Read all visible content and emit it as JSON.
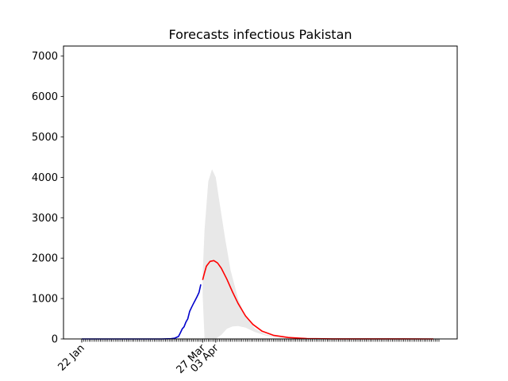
{
  "chart_data": {
    "type": "line",
    "title": "Forecasts infectious Pakistan",
    "xlabel": "",
    "ylabel": "",
    "ylim": [
      0,
      7250
    ],
    "yticks": [
      0,
      1000,
      2000,
      3000,
      4000,
      5000,
      6000,
      7000
    ],
    "x_tick_labels": [
      {
        "label": "22 Jan",
        "date": "2020-01-22"
      },
      {
        "label": "27 Mar",
        "date": "2020-03-27"
      },
      {
        "label": "03 Apr",
        "date": "2020-04-03"
      }
    ],
    "xlim": [
      "2020-01-22",
      "2020-08-01"
    ],
    "series": [
      {
        "role": "observed",
        "color": "#0000cc",
        "points": [
          [
            "2020-01-22",
            0
          ],
          [
            "2020-02-15",
            0
          ],
          [
            "2020-03-05",
            0
          ],
          [
            "2020-03-10",
            5
          ],
          [
            "2020-03-12",
            20
          ],
          [
            "2020-03-14",
            60
          ],
          [
            "2020-03-15",
            150
          ],
          [
            "2020-03-16",
            250
          ],
          [
            "2020-03-17",
            300
          ],
          [
            "2020-03-18",
            420
          ],
          [
            "2020-03-19",
            500
          ],
          [
            "2020-03-20",
            680
          ],
          [
            "2020-03-21",
            780
          ],
          [
            "2020-03-22",
            870
          ],
          [
            "2020-03-23",
            960
          ],
          [
            "2020-03-24",
            1050
          ],
          [
            "2020-03-25",
            1150
          ],
          [
            "2020-03-26",
            1350
          ]
        ]
      },
      {
        "role": "forecast",
        "color": "#ff0000",
        "points": [
          [
            "2020-03-27",
            1460
          ],
          [
            "2020-03-28",
            1640
          ],
          [
            "2020-03-29",
            1800
          ],
          [
            "2020-03-31",
            1920
          ],
          [
            "2020-04-02",
            1940
          ],
          [
            "2020-04-04",
            1880
          ],
          [
            "2020-04-06",
            1750
          ],
          [
            "2020-04-09",
            1480
          ],
          [
            "2020-04-12",
            1170
          ],
          [
            "2020-04-15",
            880
          ],
          [
            "2020-04-19",
            570
          ],
          [
            "2020-04-23",
            360
          ],
          [
            "2020-04-28",
            190
          ],
          [
            "2020-05-04",
            90
          ],
          [
            "2020-05-12",
            35
          ],
          [
            "2020-05-22",
            10
          ],
          [
            "2020-06-05",
            2
          ],
          [
            "2020-07-29",
            0
          ]
        ]
      }
    ],
    "band": {
      "color": "#e8e8e8",
      "upper": [
        [
          "2020-03-27",
          1600
        ],
        [
          "2020-03-28",
          2700
        ],
        [
          "2020-03-30",
          3900
        ],
        [
          "2020-04-01",
          4200
        ],
        [
          "2020-04-03",
          4000
        ],
        [
          "2020-04-05",
          3400
        ],
        [
          "2020-04-08",
          2500
        ],
        [
          "2020-04-11",
          1700
        ],
        [
          "2020-04-15",
          1000
        ],
        [
          "2020-04-19",
          550
        ],
        [
          "2020-04-24",
          260
        ],
        [
          "2020-04-30",
          110
        ],
        [
          "2020-05-08",
          30
        ],
        [
          "2020-05-20",
          5
        ],
        [
          "2020-06-10",
          0
        ]
      ],
      "lower": [
        [
          "2020-03-27",
          1100
        ],
        [
          "2020-03-28",
          0
        ],
        [
          "2020-04-03",
          0
        ],
        [
          "2020-04-06",
          100
        ],
        [
          "2020-04-09",
          250
        ],
        [
          "2020-04-12",
          310
        ],
        [
          "2020-04-15",
          320
        ],
        [
          "2020-04-19",
          280
        ],
        [
          "2020-04-24",
          170
        ],
        [
          "2020-04-30",
          80
        ],
        [
          "2020-05-08",
          20
        ],
        [
          "2020-05-20",
          4
        ],
        [
          "2020-06-10",
          0
        ]
      ]
    },
    "grid": false,
    "legend": "none"
  }
}
